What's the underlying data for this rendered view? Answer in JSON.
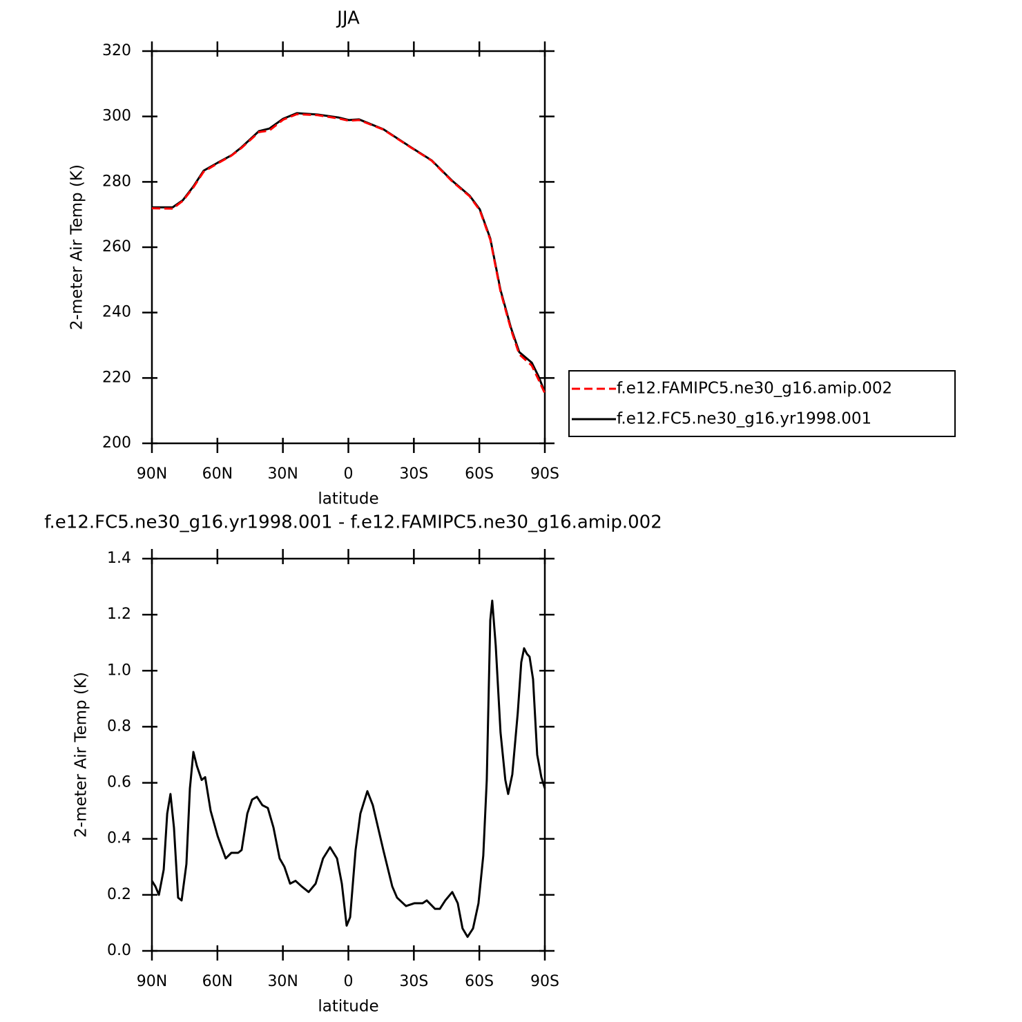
{
  "chart_data": [
    {
      "type": "line",
      "title": "JJA",
      "xlabel": "latitude",
      "ylabel": "2-meter Air Temp (K)",
      "x": [
        90,
        80.5,
        75.8,
        71,
        66.3,
        60,
        53.6,
        48.9,
        41,
        36.2,
        29.9,
        23.6,
        14.1,
        4.6,
        -0.2,
        -4.9,
        -16,
        -28.6,
        -38.1,
        -47.6,
        -55.5,
        -60.2,
        -65,
        -69.7,
        -74.5,
        -78.3,
        -84,
        -87.1,
        -90
      ],
      "series": [
        {
          "name": "f.e12.FAMIPC5.ne30_g16.amip.002",
          "color": "#ff0000",
          "line_style": "dashed",
          "values": [
            271.9,
            271.8,
            274.2,
            278.3,
            283.1,
            285.6,
            288.0,
            290.4,
            295.2,
            295.7,
            299.0,
            300.7,
            300.4,
            299.4,
            298.7,
            298.9,
            296.0,
            290.5,
            286.5,
            280.1,
            275.6,
            271.3,
            262.3,
            246.4,
            234.8,
            227.2,
            223.8,
            219.5,
            215.3
          ]
        },
        {
          "name": "f.e12.FC5.ne30_g16.yr1998.001",
          "color": "#000000",
          "line_style": "solid",
          "values": [
            272.2,
            272.2,
            274.4,
            278.6,
            283.4,
            285.8,
            288.1,
            290.6,
            295.5,
            296.3,
            299.3,
            301.0,
            300.6,
            299.7,
            298.9,
            299.1,
            296.1,
            290.6,
            286.6,
            280.3,
            275.8,
            271.6,
            262.7,
            246.9,
            235.3,
            227.9,
            224.7,
            220.5,
            215.6
          ]
        }
      ],
      "xlim": [
        90,
        -90
      ],
      "xticks": [
        {
          "value": 90,
          "label": "90N"
        },
        {
          "value": 60,
          "label": "60N"
        },
        {
          "value": 30,
          "label": "30N"
        },
        0,
        {
          "value": -30,
          "label": "30S"
        },
        {
          "value": -60,
          "label": "60S"
        },
        {
          "value": -90,
          "label": "90S"
        }
      ],
      "ylim": [
        200,
        320
      ],
      "yticks": [
        200,
        220,
        240,
        260,
        280,
        300,
        320
      ],
      "legend_position": "right"
    },
    {
      "type": "line",
      "title": "f.e12.FC5.ne30_g16.yr1998.001 - f.e12.FAMIPC5.ne30_g16.amip.002",
      "xlabel": "latitude",
      "ylabel": "2-meter Air Temp (K)",
      "x": [
        90,
        88.4,
        86.8,
        84.6,
        83.0,
        81.5,
        79.9,
        78.0,
        76.4,
        74.2,
        72.6,
        71.0,
        69.4,
        67.2,
        65.6,
        63.1,
        59.9,
        56.2,
        53.6,
        50.5,
        48.9,
        46.3,
        44.1,
        41.9,
        39.4,
        36.9,
        34.3,
        31.5,
        29.3,
        26.7,
        24.2,
        21.4,
        18.2,
        15.0,
        11.6,
        8.4,
        5.2,
        3.0,
        0.8,
        -0.8,
        -3.3,
        -5.5,
        -8.7,
        -11.2,
        -16,
        -20.1,
        -22.3,
        -26.4,
        -30.2,
        -34,
        -35.9,
        -39.7,
        -41.9,
        -44.4,
        -47.6,
        -50.1,
        -52.3,
        -54.6,
        -57.1,
        -59.6,
        -61.8,
        -63.4,
        -65,
        -65.9,
        -67.5,
        -69.7,
        -71.9,
        -73.2,
        -75.1,
        -77.6,
        -79.2,
        -80.5,
        -81.8,
        -83.0,
        -84.6,
        -86.5,
        -88.4,
        -90
      ],
      "series": [
        {
          "color": "#000000",
          "line_style": "solid",
          "values": [
            0.25,
            0.23,
            0.2,
            0.29,
            0.49,
            0.56,
            0.44,
            0.19,
            0.18,
            0.31,
            0.58,
            0.71,
            0.66,
            0.61,
            0.62,
            0.5,
            0.41,
            0.33,
            0.35,
            0.35,
            0.36,
            0.49,
            0.54,
            0.55,
            0.52,
            0.51,
            0.44,
            0.33,
            0.3,
            0.24,
            0.25,
            0.23,
            0.21,
            0.24,
            0.33,
            0.37,
            0.33,
            0.24,
            0.09,
            0.12,
            0.36,
            0.49,
            0.57,
            0.52,
            0.36,
            0.23,
            0.19,
            0.16,
            0.17,
            0.17,
            0.18,
            0.15,
            0.15,
            0.18,
            0.21,
            0.17,
            0.08,
            0.05,
            0.08,
            0.17,
            0.34,
            0.61,
            1.18,
            1.25,
            1.09,
            0.78,
            0.61,
            0.56,
            0.63,
            0.85,
            1.03,
            1.08,
            1.06,
            1.05,
            0.97,
            0.7,
            0.62,
            0.58
          ]
        }
      ],
      "xlim": [
        90,
        -90
      ],
      "xticks": [
        {
          "value": 90,
          "label": "90N"
        },
        {
          "value": 60,
          "label": "60N"
        },
        {
          "value": 30,
          "label": "30N"
        },
        0,
        {
          "value": -30,
          "label": "30S"
        },
        {
          "value": -60,
          "label": "60S"
        },
        {
          "value": -90,
          "label": "90S"
        }
      ],
      "ylim": [
        0,
        1.4
      ],
      "yticks": [
        {
          "value": 0,
          "label": "0.0"
        },
        0.2,
        0.4,
        0.6,
        0.8,
        {
          "value": 1,
          "label": "1.0"
        },
        1.2,
        1.4
      ]
    }
  ]
}
